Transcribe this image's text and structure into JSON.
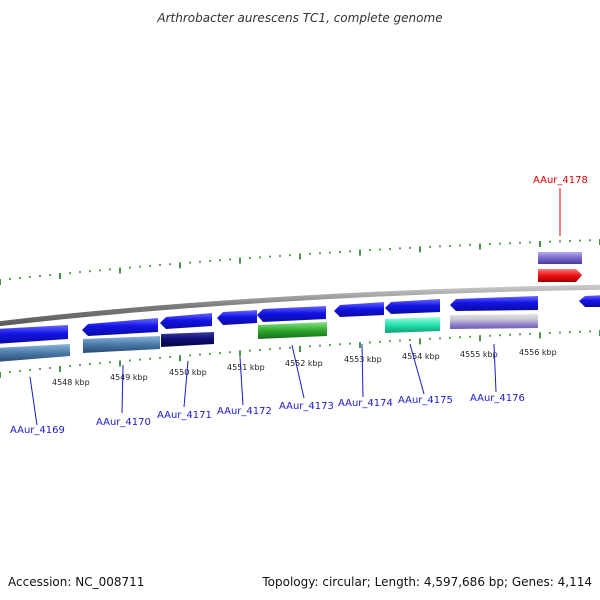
{
  "title": "Arthrobacter aurescens TC1, complete genome",
  "footer": {
    "accession": "Accession: NC_008711",
    "summary": "Topology: circular; Length: 4,597,686 bp; Genes: 4,114"
  },
  "colors": {
    "label_blue": "#1a1acc",
    "label_red": "#dd0000",
    "backbone": "#888888",
    "tick_green": "#1a7a1a"
  },
  "scale_labels": [
    "4548 kbp",
    "4549 kbp",
    "4550 kbp",
    "4551 kbp",
    "4552 kbp",
    "4553 kbp",
    "4554 kbp",
    "4555 kbp",
    "4556 kbp"
  ],
  "genes": [
    {
      "label": "AAur_4169",
      "color": "#1a1acc",
      "feature_color": "#3c6a9a"
    },
    {
      "label": "AAur_4170",
      "color": "#1a1acc",
      "feature_color": "#5a8ab8"
    },
    {
      "label": "AAur_4171",
      "color": "#1a1acc",
      "feature_color": "#0a0a6a"
    },
    {
      "label": "AAur_4172",
      "color": "#1a1acc",
      "feature_color": "#1010dd"
    },
    {
      "label": "AAur_4173",
      "color": "#1a1acc",
      "feature_color": "#33aa33"
    },
    {
      "label": "AAur_4174",
      "color": "#1a1acc",
      "feature_color": "#1010dd"
    },
    {
      "label": "AAur_4175",
      "color": "#1a1acc",
      "feature_color": "#22ddaa"
    },
    {
      "label": "AAur_4176",
      "color": "#1a1acc",
      "feature_color": "#9a8acc"
    },
    {
      "label": "AAur_4178",
      "color": "#dd0000",
      "feature_color": "#ee1111"
    }
  ]
}
